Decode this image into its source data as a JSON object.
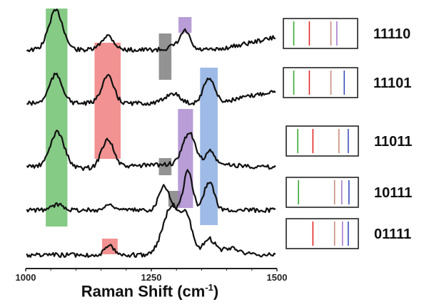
{
  "chart_data": {
    "type": "line",
    "xlabel_text": "Raman Shift (cm",
    "xlabel_sup": "-1",
    "xlabel_close": ")",
    "xlim": [
      1000,
      1500
    ],
    "xticks": [
      1000,
      1250,
      1500
    ],
    "tick_labels": [
      "1000",
      "1250",
      "1500"
    ],
    "highlight_bands": [
      {
        "color": "#5cb85c",
        "x0": 1040,
        "x1": 1083,
        "spectra": [
          0,
          3
        ]
      },
      {
        "color": "#ee6e6e",
        "x0": 1137,
        "x1": 1189,
        "spectra": [
          0,
          1
        ]
      },
      {
        "color": "#ee6e6e",
        "x0": 1152,
        "x1": 1183,
        "spectra": [
          4,
          4
        ]
      },
      {
        "color": "#6f6f6f",
        "x0": 1265,
        "x1": 1290,
        "spectra": [
          0,
          0
        ]
      },
      {
        "color": "#6f6f6f",
        "x0": 1265,
        "x1": 1290,
        "spectra": [
          2,
          2
        ]
      },
      {
        "color": "#6f6f6f",
        "x0": 1284,
        "x1": 1308,
        "spectra": [
          3,
          3
        ]
      },
      {
        "color": "#a07cc9",
        "x0": 1304,
        "x1": 1330,
        "spectra": [
          0,
          0
        ]
      },
      {
        "color": "#a07cc9",
        "x0": 1303,
        "x1": 1333,
        "spectra": [
          2,
          3
        ]
      },
      {
        "color": "#7ea3dd",
        "x0": 1347,
        "x1": 1382,
        "spectra": [
          1,
          3
        ]
      }
    ],
    "series": [
      {
        "code": "11110",
        "baseline": 70,
        "peaks": [
          [
            1060,
            55,
            14
          ],
          [
            1163,
            20,
            12
          ],
          [
            1300,
            6,
            14
          ],
          [
            1318,
            24,
            9
          ]
        ],
        "bars": [
          {
            "color": "#3aaa35",
            "pos": 0.14
          },
          {
            "color": "#e32b2b",
            "pos": 0.35
          },
          {
            "color": "#c98b7a",
            "pos": 0.64
          },
          {
            "color": "#a97ccf",
            "pos": 0.72
          }
        ]
      },
      {
        "code": "11101",
        "baseline": 145,
        "peaks": [
          [
            1060,
            40,
            13
          ],
          [
            1163,
            38,
            12
          ],
          [
            1292,
            14,
            14
          ],
          [
            1365,
            36,
            11
          ]
        ],
        "bars": [
          {
            "color": "#3aaa35",
            "pos": 0.14
          },
          {
            "color": "#e32b2b",
            "pos": 0.35
          },
          {
            "color": "#c98b7a",
            "pos": 0.64
          },
          {
            "color": "#3a4fbf",
            "pos": 0.82
          }
        ]
      },
      {
        "code": "11011",
        "baseline": 233,
        "peaks": [
          [
            1063,
            50,
            14
          ],
          [
            1163,
            40,
            12
          ],
          [
            1325,
            44,
            12
          ],
          [
            1367,
            18,
            9
          ]
        ],
        "bars": [
          {
            "color": "#3aaa35",
            "pos": 0.16
          },
          {
            "color": "#e32b2b",
            "pos": 0.37
          },
          {
            "color": "#c98b7a",
            "pos": 0.73
          },
          {
            "color": "#3a4fbf",
            "pos": 0.86
          }
        ]
      },
      {
        "code": "10111",
        "baseline": 295,
        "peaks": [
          [
            1065,
            8,
            12
          ],
          [
            1168,
            8,
            10
          ],
          [
            1275,
            35,
            10
          ],
          [
            1323,
            55,
            9
          ],
          [
            1365,
            40,
            10
          ]
        ],
        "bars": [
          {
            "color": "#3aaa35",
            "pos": 0.17
          },
          {
            "color": "#c98b7a",
            "pos": 0.67
          },
          {
            "color": "#a97ccf",
            "pos": 0.77
          },
          {
            "color": "#3a4fbf",
            "pos": 0.87
          }
        ]
      },
      {
        "code": "01111",
        "baseline": 358,
        "peaks": [
          [
            1168,
            12,
            10
          ],
          [
            1292,
            70,
            18
          ],
          [
            1322,
            40,
            10
          ],
          [
            1365,
            22,
            12
          ],
          [
            1410,
            10,
            18
          ]
        ],
        "bars": [
          {
            "color": "#e32b2b",
            "pos": 0.37
          },
          {
            "color": "#c98b7a",
            "pos": 0.67
          },
          {
            "color": "#a97ccf",
            "pos": 0.78
          },
          {
            "color": "#3a4fbf",
            "pos": 0.86
          }
        ]
      }
    ]
  }
}
